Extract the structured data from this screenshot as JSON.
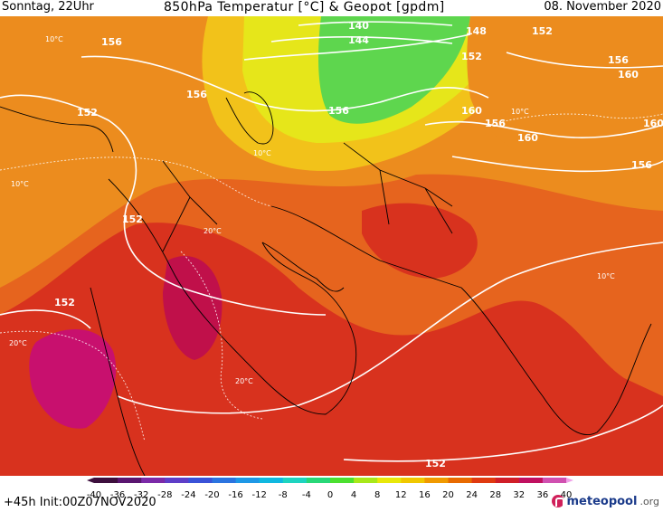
{
  "header": {
    "left": "Sonntag, 22Uhr",
    "title": "850hPa Temperatur [°C] & Geopot [gpdm]",
    "right": "08. November 2020"
  },
  "footer": {
    "init": "+45h  Init:00Z07NOV2020",
    "logo_text": "meteopool",
    "logo_tld": ".org"
  },
  "colorbar": {
    "ticks": [
      "-40",
      "-36",
      "-32",
      "-28",
      "-24",
      "-20",
      "-16",
      "-12",
      "-8",
      "-4",
      "0",
      "4",
      "8",
      "12",
      "16",
      "20",
      "24",
      "28",
      "32",
      "36",
      "40"
    ],
    "colors": [
      "#3d0f3d",
      "#5a1670",
      "#7b2aa8",
      "#5e3ec8",
      "#3a52d8",
      "#2b74e0",
      "#1e98e6",
      "#10b8e0",
      "#1ed4c0",
      "#28d878",
      "#4ce030",
      "#a8e81a",
      "#e8e80a",
      "#f0c800",
      "#f09a00",
      "#e86a00",
      "#e03a10",
      "#d01e28",
      "#c01060",
      "#d050b0",
      "#f0a0e8"
    ]
  },
  "map_colors": {
    "green": "#5ed64e",
    "yellow": "#e6e61a",
    "yellow_orange": "#f2c21a",
    "orange": "#ec8c1e",
    "orange_red": "#e6641e",
    "red": "#d8321e",
    "crimson": "#c0104a",
    "magenta": "#c8106e"
  },
  "contour_labels": {
    "geopot": [
      "140",
      "144",
      "148",
      "152",
      "156",
      "160"
    ],
    "temperature": [
      "10°C",
      "20°C"
    ]
  }
}
